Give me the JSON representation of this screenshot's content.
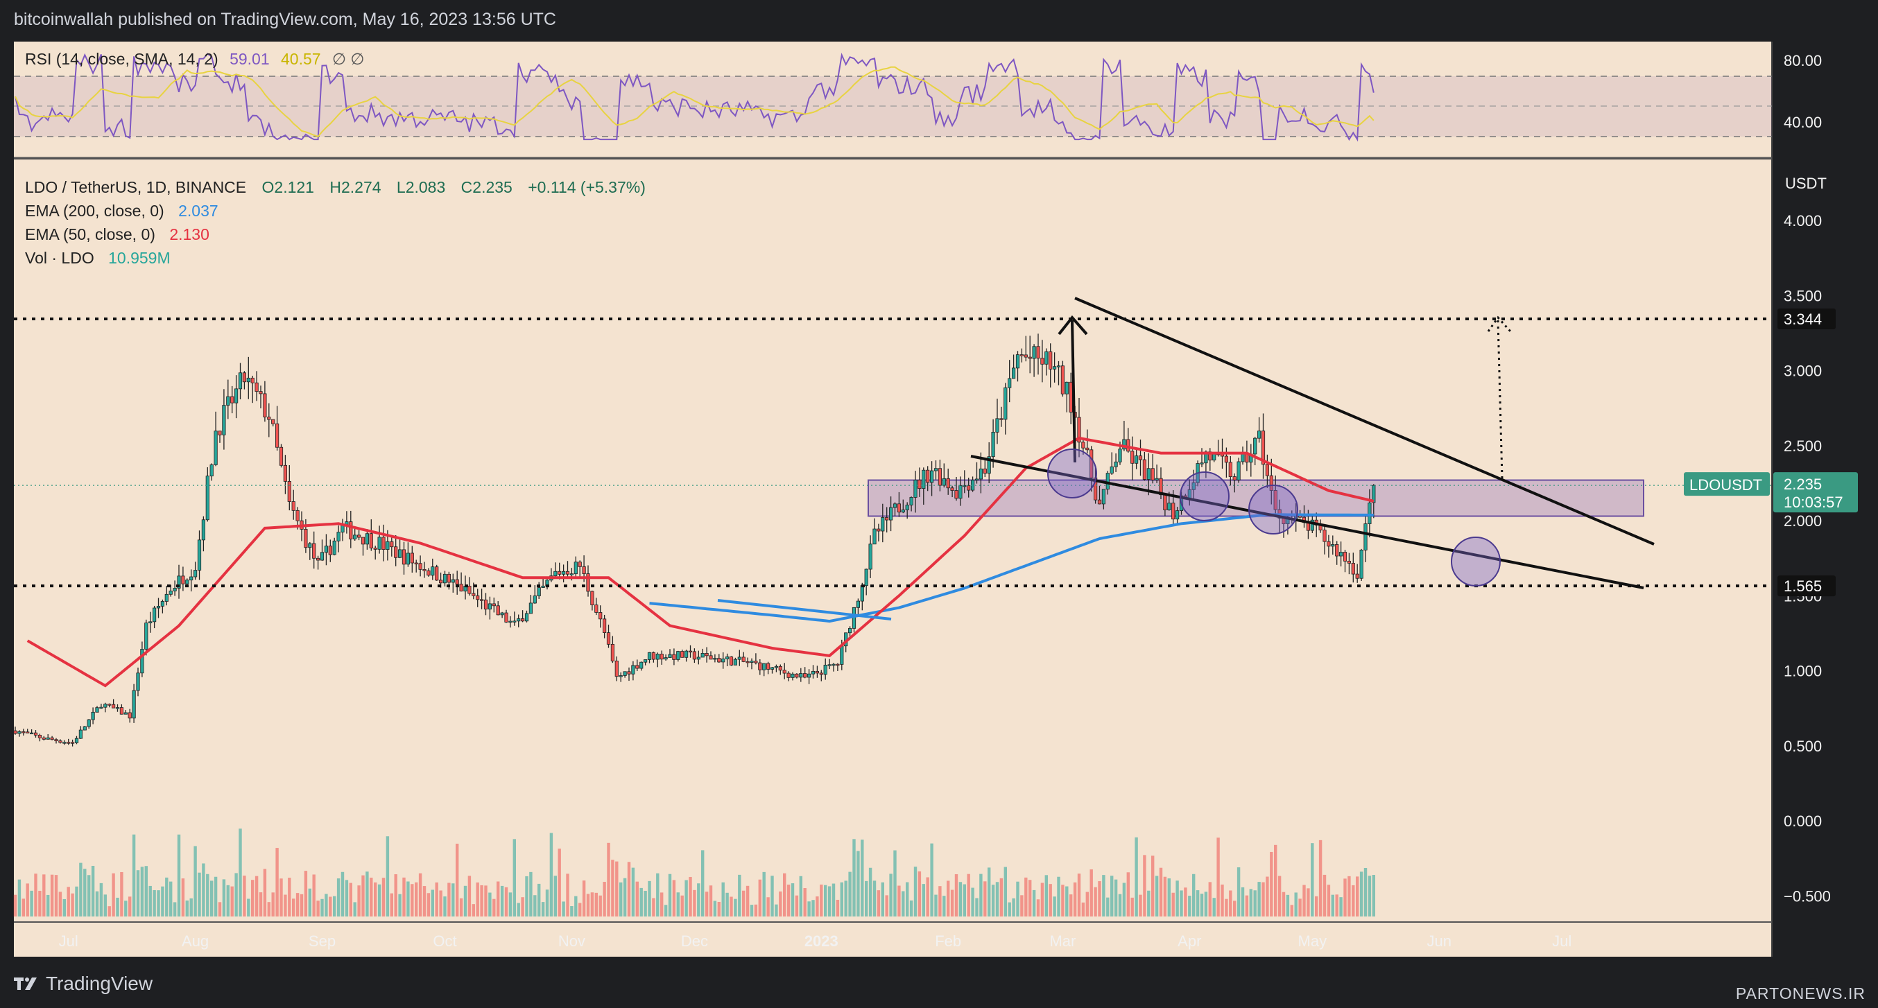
{
  "header": {
    "text": "bitcoinwallah published on TradingView.com, May 16, 2023 13:56 UTC"
  },
  "footer": {
    "brand": "TradingView",
    "watermark": "PARTONEWS.IR"
  },
  "colors": {
    "panel_bg": "#f4e3d0",
    "up": "#26a69a",
    "down": "#ef5350",
    "ema200": "#2f8be0",
    "ema50": "#e53241",
    "rsi": "#7e57c2",
    "rsi_ma": "#e8d341",
    "zone_fill": "rgba(135,95,185,0.32)",
    "zone_stroke": "#6a4fa0",
    "tag_green": "#3a9a82",
    "tag_black": "#111111"
  },
  "rsi_panel": {
    "label": "RSI (14, close, SMA, 14, 2)",
    "rsi_value": "59.01",
    "ma_value": "40.57",
    "extra": "∅ ∅",
    "ticks": [
      "80.00",
      "40.00"
    ]
  },
  "legend": {
    "symbol_line": "LDO / TetherUS, 1D, BINANCE",
    "ohlc": {
      "o": "O2.121",
      "h": "H2.274",
      "l": "L2.083",
      "c": "C2.235",
      "chg": "+0.114 (+5.37%)"
    },
    "ema200_label": "EMA (200, close, 0)",
    "ema200_value": "2.037",
    "ema50_label": "EMA (50, close, 0)",
    "ema50_value": "2.130",
    "vol_label": "Vol · LDO",
    "vol_value": "10.959M"
  },
  "price_axis": {
    "unit": "USDT",
    "ticks": [
      "4.000",
      "3.500",
      "3.000",
      "2.500",
      "2.000",
      "1.500",
      "1.000",
      "0.500",
      "0.000",
      "−0.500"
    ],
    "last_symbol": "LDOUSDT",
    "last_price": "2.235",
    "countdown": "10:03:57",
    "level_high": "3.344",
    "level_low": "1.565"
  },
  "time_axis": {
    "labels": [
      "Jul",
      "Aug",
      "Sep",
      "Oct",
      "Nov",
      "Dec",
      "2023",
      "Feb",
      "Mar",
      "Apr",
      "May",
      "Jun",
      "Jul"
    ]
  },
  "chart_data": {
    "type": "candlestick",
    "symbol": "LDO / TetherUS",
    "interval": "1D",
    "exchange": "BINANCE",
    "ylim": [
      -0.65,
      4.3
    ],
    "last": {
      "open": 2.121,
      "high": 2.274,
      "low": 2.083,
      "close": 2.235,
      "change": 0.114,
      "change_pct": 5.37
    },
    "indicators": {
      "ema200": 2.037,
      "ema50": 2.13,
      "volume": "10.959M",
      "rsi": 59.01,
      "rsi_sma": 40.57
    },
    "levels": [
      3.344,
      1.565
    ],
    "zone": [
      2.03,
      2.27
    ],
    "close_path": [
      [
        "2022-06-18",
        0.6
      ],
      [
        "2022-06-25",
        0.55
      ],
      [
        "2022-07-02",
        0.52
      ],
      [
        "2022-07-09",
        0.78
      ],
      [
        "2022-07-16",
        0.7
      ],
      [
        "2022-07-20",
        1.3
      ],
      [
        "2022-07-26",
        1.55
      ],
      [
        "2022-08-01",
        1.7
      ],
      [
        "2022-08-06",
        2.6
      ],
      [
        "2022-08-13",
        2.95
      ],
      [
        "2022-08-19",
        2.7
      ],
      [
        "2022-08-24",
        2.1
      ],
      [
        "2022-08-31",
        1.7
      ],
      [
        "2022-09-06",
        1.95
      ],
      [
        "2022-09-15",
        1.85
      ],
      [
        "2022-09-25",
        1.7
      ],
      [
        "2022-10-05",
        1.55
      ],
      [
        "2022-10-18",
        1.3
      ],
      [
        "2022-10-28",
        1.65
      ],
      [
        "2022-11-03",
        1.7
      ],
      [
        "2022-11-09",
        1.25
      ],
      [
        "2022-11-12",
        0.95
      ],
      [
        "2022-11-20",
        1.1
      ],
      [
        "2022-12-01",
        1.1
      ],
      [
        "2022-12-15",
        1.05
      ],
      [
        "2022-12-28",
        0.95
      ],
      [
        "2023-01-05",
        1.05
      ],
      [
        "2023-01-10",
        1.5
      ],
      [
        "2023-01-14",
        1.9
      ],
      [
        "2023-01-20",
        2.1
      ],
      [
        "2023-01-28",
        2.35
      ],
      [
        "2023-02-03",
        2.2
      ],
      [
        "2023-02-10",
        2.35
      ],
      [
        "2023-02-18",
        3.1
      ],
      [
        "2023-02-26",
        3.05
      ],
      [
        "2023-03-03",
        2.8
      ],
      [
        "2023-03-10",
        2.1
      ],
      [
        "2023-03-15",
        2.5
      ],
      [
        "2023-03-22",
        2.3
      ],
      [
        "2023-03-28",
        2.05
      ],
      [
        "2023-04-05",
        2.45
      ],
      [
        "2023-04-12",
        2.3
      ],
      [
        "2023-04-18",
        2.55
      ],
      [
        "2023-04-22",
        2.05
      ],
      [
        "2023-05-01",
        1.95
      ],
      [
        "2023-05-09",
        1.75
      ],
      [
        "2023-05-12",
        1.65
      ],
      [
        "2023-05-16",
        2.235
      ]
    ],
    "ema50_path": [
      [
        "2022-06-21",
        1.2
      ],
      [
        "2022-07-10",
        0.9
      ],
      [
        "2022-07-28",
        1.3
      ],
      [
        "2022-08-18",
        1.95
      ],
      [
        "2022-09-05",
        1.98
      ],
      [
        "2022-09-25",
        1.85
      ],
      [
        "2022-10-20",
        1.62
      ],
      [
        "2022-11-10",
        1.62
      ],
      [
        "2022-11-25",
        1.3
      ],
      [
        "2022-12-20",
        1.15
      ],
      [
        "2023-01-03",
        1.1
      ],
      [
        "2023-01-20",
        1.5
      ],
      [
        "2023-02-05",
        1.9
      ],
      [
        "2023-02-20",
        2.35
      ],
      [
        "2023-03-05",
        2.55
      ],
      [
        "2023-03-25",
        2.45
      ],
      [
        "2023-04-15",
        2.45
      ],
      [
        "2023-05-05",
        2.2
      ],
      [
        "2023-05-16",
        2.13
      ]
    ],
    "ema200_path": [
      [
        "2022-11-20",
        1.45
      ],
      [
        "2022-12-20",
        1.37
      ],
      [
        "2023-01-03",
        1.33
      ],
      [
        "2023-01-20",
        1.42
      ],
      [
        "2023-02-05",
        1.55
      ],
      [
        "2023-02-20",
        1.7
      ],
      [
        "2023-03-10",
        1.88
      ],
      [
        "2023-03-30",
        1.98
      ],
      [
        "2023-04-20",
        2.04
      ],
      [
        "2023-05-16",
        2.037
      ]
    ]
  }
}
